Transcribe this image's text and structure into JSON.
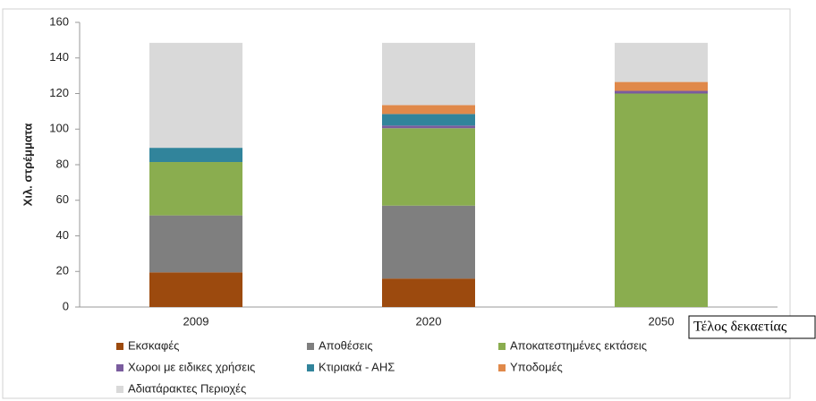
{
  "chart_data": {
    "type": "stacked_bar",
    "y_label": "Χιλ. στρέμματα",
    "categories": [
      "2009",
      "2020",
      "2050"
    ],
    "series": [
      {
        "name": "Εκσκαφές",
        "color": "#9c4a0e",
        "values": [
          19.5,
          16,
          0
        ]
      },
      {
        "name": "Αποθέσεις",
        "color": "#7f7f7f",
        "values": [
          32,
          41,
          0
        ]
      },
      {
        "name": "Αποκατεστημένες εκτάσεις",
        "color": "#8aad4f",
        "values": [
          30,
          43.5,
          120
        ]
      },
      {
        "name": "Χωροι με ειδικες χρήσεις",
        "color": "#7a5c9e",
        "values": [
          0,
          1.5,
          1.5
        ]
      },
      {
        "name": "Κτιριακά - ΑΗΣ",
        "color": "#31849b",
        "values": [
          8,
          6.5,
          0
        ]
      },
      {
        "name": "Υποδομές",
        "color": "#e0894a",
        "values": [
          0,
          5,
          5
        ]
      },
      {
        "name": "Αδιατάρακτες Περιοχές",
        "color": "#d9d9d9",
        "values": [
          59,
          35,
          22
        ]
      }
    ],
    "ylim": [
      0,
      160
    ],
    "yticks": [
      0,
      20,
      40,
      60,
      80,
      100,
      120,
      140,
      160
    ],
    "annotation": "Τέλος δεκαετίας"
  }
}
